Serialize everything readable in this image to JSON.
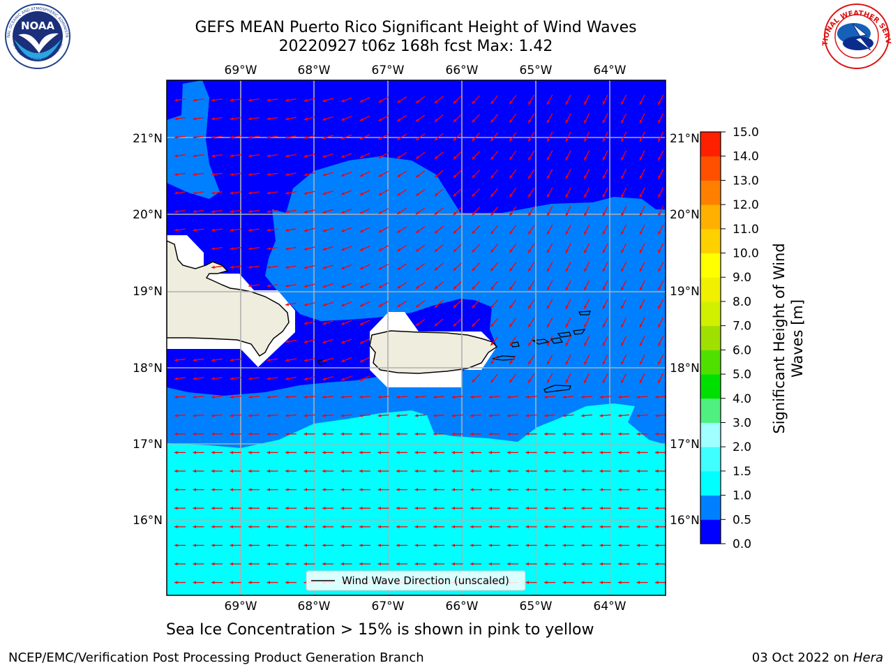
{
  "title": {
    "line1": "GEFS MEAN Puerto Rico Significant Height of Wind Waves",
    "line2": "20220927 t06z 168h fcst   Max: 1.42"
  },
  "subtitle": "Sea Ice Concentration > 15% is shown in pink to yellow",
  "footer": {
    "left": "NCEP/EMC/Verification Post Processing Product Generation Branch",
    "right_prefix": "03 Oct 2022 on ",
    "right_machine": "Hera"
  },
  "logos": {
    "noaa_text": "NOAA",
    "noaa_ring_top": "NATIONAL OCEANIC AND ATMOSPHERIC ADMINISTRATION",
    "noaa_ring_bottom": "U.S. DEPARTMENT OF COMMERCE",
    "nws_ring": "NATIONAL WEATHER SERVICE"
  },
  "map": {
    "lon_labels": [
      "69°W",
      "68°W",
      "67°W",
      "66°W",
      "65°W",
      "64°W"
    ],
    "lat_labels": [
      "21°N",
      "20°N",
      "19°N",
      "18°N",
      "17°N",
      "16°N"
    ],
    "legend_label": "Wind Wave Direction (unscaled)",
    "arrow_color": "#ff0000",
    "land_color": "#efedde"
  },
  "colorbar": {
    "label": "Significant Height of Wind Waves [m]",
    "label_line1": "Significant Height of Wind",
    "label_line2": "Waves [m]",
    "ticks": [
      "15.0",
      "14.0",
      "13.0",
      "12.0",
      "11.0",
      "10.0",
      "9.0",
      "8.0",
      "7.0",
      "6.0",
      "5.0",
      "4.0",
      "3.0",
      "2.0",
      "1.5",
      "1.0",
      "0.5",
      "0.0"
    ],
    "levels": [
      0.0,
      0.5,
      1.0,
      1.5,
      2.0,
      3.0,
      4.0,
      5.0,
      6.0,
      7.0,
      8.0,
      9.0,
      10.0,
      11.0,
      12.0,
      13.0,
      14.0,
      15.0
    ],
    "colors": [
      "#0000ff",
      "#0080ff",
      "#00ffff",
      "#40ffff",
      "#a0ffff",
      "#50f080",
      "#00e000",
      "#50e000",
      "#a0e000",
      "#d0f000",
      "#f0f000",
      "#ffff00",
      "#ffd000",
      "#ffb000",
      "#ff8000",
      "#ff5000",
      "#ff2000"
    ]
  }
}
